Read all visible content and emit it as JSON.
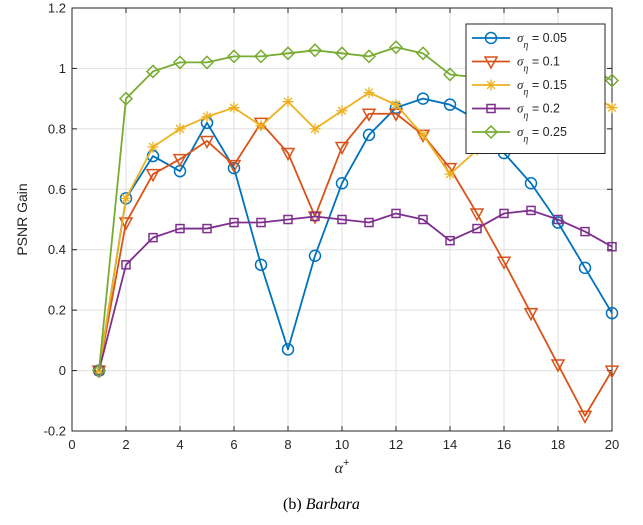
{
  "chart_data": {
    "type": "line",
    "xlabel_symbol": "α",
    "xlabel_superscript": "+",
    "ylabel": "PSNR Gain",
    "xlim": [
      0,
      20
    ],
    "ylim": [
      -0.2,
      1.2
    ],
    "xticks": [
      0,
      2,
      4,
      6,
      8,
      10,
      12,
      14,
      16,
      18,
      20
    ],
    "yticks": [
      -0.2,
      0,
      0.2,
      0.4,
      0.6,
      0.8,
      1,
      1.2
    ],
    "ytick_labels": [
      "-0.2",
      "0",
      "0.2",
      "0.4",
      "0.6",
      "0.8",
      "1",
      "1.2"
    ],
    "grid": true,
    "legend_position": "top-right",
    "x": [
      1,
      2,
      3,
      4,
      5,
      6,
      7,
      8,
      9,
      10,
      11,
      12,
      13,
      14,
      15,
      16,
      17,
      18,
      19,
      20
    ],
    "series": [
      {
        "name": "σ_η = 0.05",
        "legend_symbol": "σ",
        "legend_subscript": "η",
        "legend_value": " = 0.05",
        "color": "#0072BD",
        "marker": "circle",
        "values": [
          0.0,
          0.57,
          0.71,
          0.66,
          0.82,
          0.67,
          0.35,
          0.07,
          0.38,
          0.62,
          0.78,
          0.87,
          0.9,
          0.88,
          0.83,
          0.72,
          0.62,
          0.49,
          0.34,
          0.19
        ]
      },
      {
        "name": "σ_η = 0.1",
        "legend_symbol": "σ",
        "legend_subscript": "η",
        "legend_value": " = 0.1",
        "color": "#D95319",
        "marker": "triangle-down",
        "values": [
          0.0,
          0.49,
          0.65,
          0.7,
          0.76,
          0.68,
          0.82,
          0.72,
          0.51,
          0.74,
          0.85,
          0.85,
          0.78,
          0.67,
          0.52,
          0.36,
          0.19,
          0.02,
          -0.15,
          0.0
        ]
      },
      {
        "name": "σ_η = 0.15",
        "legend_symbol": "σ",
        "legend_subscript": "η",
        "legend_value": " = 0.15",
        "color": "#EDB120",
        "marker": "asterisk",
        "values": [
          0.0,
          0.57,
          0.74,
          0.8,
          0.84,
          0.87,
          0.81,
          0.89,
          0.8,
          0.86,
          0.92,
          0.88,
          0.78,
          0.65,
          0.73,
          0.85,
          0.91,
          0.94,
          0.93,
          0.87
        ]
      },
      {
        "name": "σ_η = 0.2",
        "legend_symbol": "σ",
        "legend_subscript": "η",
        "legend_value": " = 0.2",
        "color": "#7E2F8E",
        "marker": "square",
        "values": [
          0.0,
          0.35,
          0.44,
          0.47,
          0.47,
          0.49,
          0.49,
          0.5,
          0.51,
          0.5,
          0.49,
          0.52,
          0.5,
          0.43,
          0.47,
          0.52,
          0.53,
          0.5,
          0.46,
          0.41
        ]
      },
      {
        "name": "σ_η = 0.25",
        "legend_symbol": "σ",
        "legend_subscript": "η",
        "legend_value": " = 0.25",
        "color": "#77AC30",
        "marker": "diamond",
        "values": [
          0.0,
          0.9,
          0.99,
          1.02,
          1.02,
          1.04,
          1.04,
          1.05,
          1.06,
          1.05,
          1.04,
          1.07,
          1.05,
          0.98,
          0.97,
          0.99,
          1.0,
          1.02,
          1.01,
          0.96
        ]
      }
    ]
  },
  "caption": {
    "label": "(b) ",
    "name": "Barbara"
  }
}
